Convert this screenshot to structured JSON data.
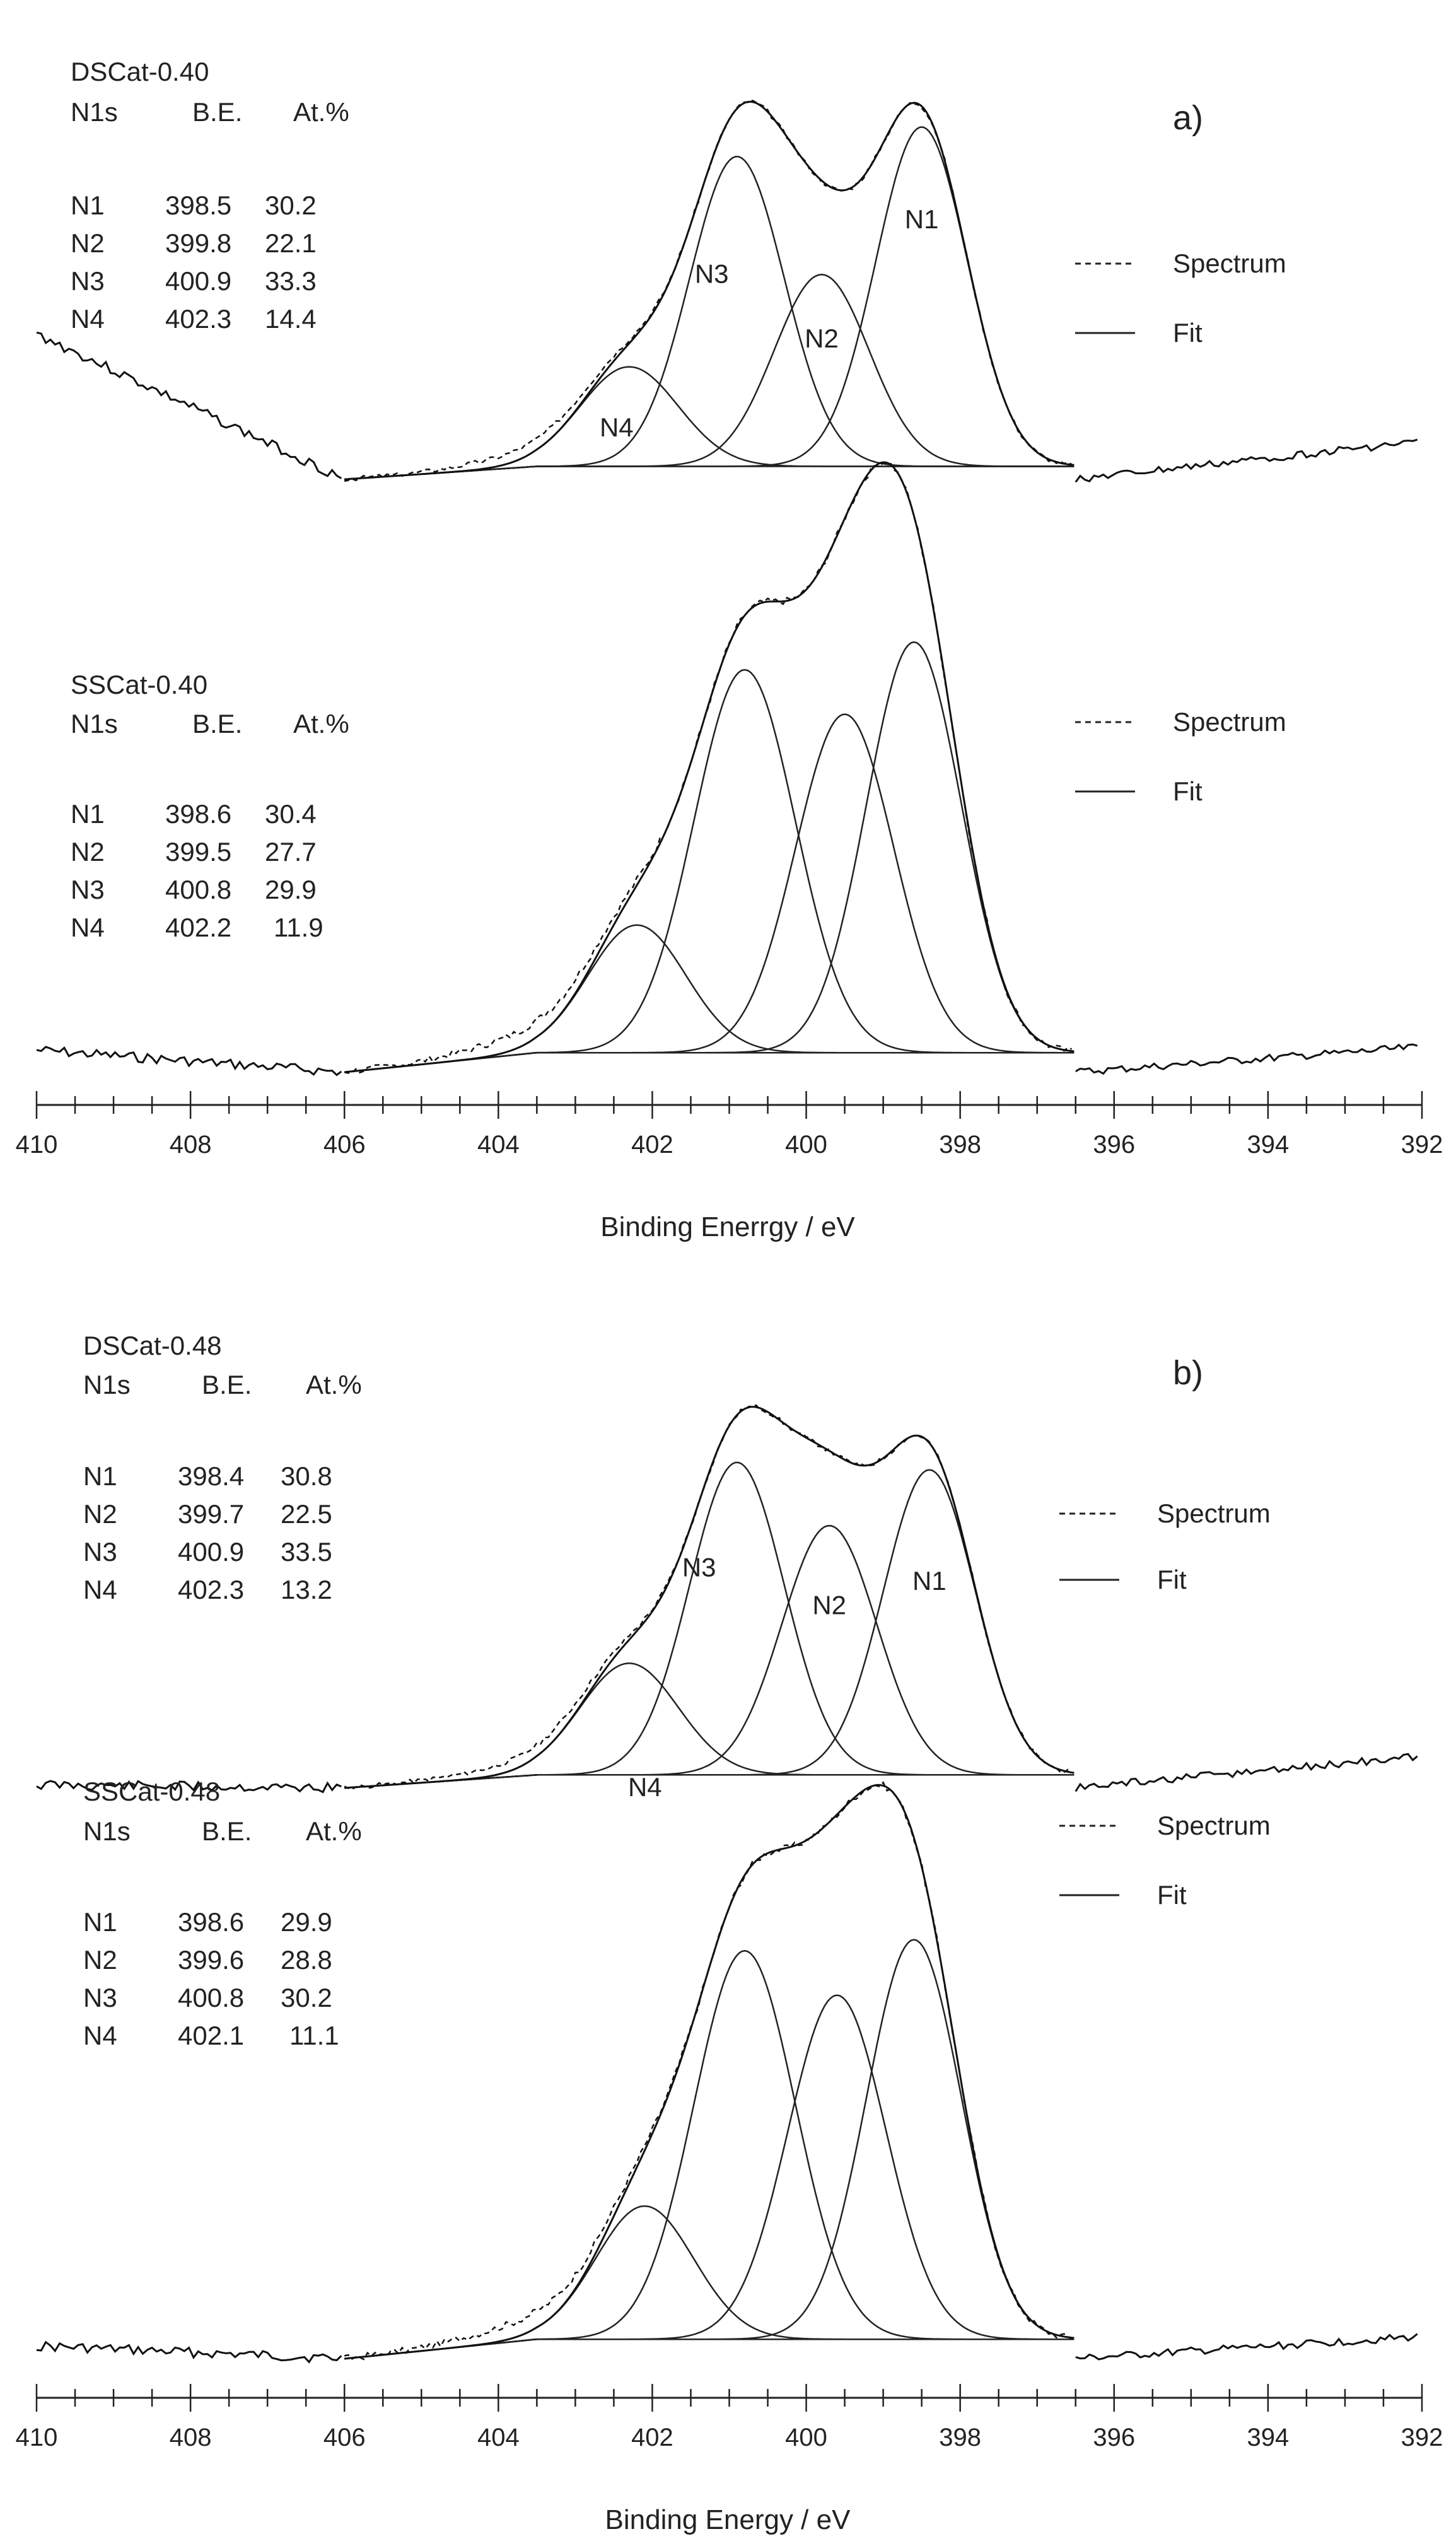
{
  "panels": [
    {
      "label": "a)",
      "axis": {
        "xlabel": "Binding Enerrgy / eV",
        "xlim": [
          410,
          392
        ],
        "ticks": [
          "410",
          "408",
          "406",
          "404",
          "402",
          "400",
          "398",
          "396",
          "394",
          "392"
        ],
        "minor_step": 0.5
      },
      "legend": {
        "spectrum": "Spectrum",
        "fit": "Fit"
      },
      "spectra": [
        {
          "sample": "DSCat-0.40",
          "header": {
            "c1": "N1s",
            "c2": "B.E.",
            "c3": "At.%"
          },
          "rows": [
            {
              "name": "N1",
              "be": "398.5",
              "at": "30.2"
            },
            {
              "name": "N2",
              "be": "399.8",
              "at": "22.1"
            },
            {
              "name": "N3",
              "be": "400.9",
              "at": "33.3"
            },
            {
              "name": "N4",
              "be": "402.3",
              "at": "14.4"
            }
          ]
        },
        {
          "sample": "SSCat-0.40",
          "header": {
            "c1": "N1s",
            "c2": "B.E.",
            "c3": "At.%"
          },
          "rows": [
            {
              "name": "N1",
              "be": "398.6",
              "at": "30.4"
            },
            {
              "name": "N2",
              "be": "399.5",
              "at": "27.7"
            },
            {
              "name": "N3",
              "be": "400.8",
              "at": "29.9"
            },
            {
              "name": "N4",
              "be": "402.2",
              "at": "11.9"
            }
          ]
        }
      ]
    },
    {
      "label": "b)",
      "axis": {
        "xlabel": "Binding Energy / eV",
        "xlim": [
          410,
          392
        ],
        "ticks": [
          "410",
          "408",
          "406",
          "404",
          "402",
          "400",
          "398",
          "396",
          "394",
          "392"
        ],
        "minor_step": 0.5
      },
      "legend": {
        "spectrum": "Spectrum",
        "fit": "Fit"
      },
      "spectra": [
        {
          "sample": "DSCat-0.48",
          "header": {
            "c1": "N1s",
            "c2": "B.E.",
            "c3": "At.%"
          },
          "rows": [
            {
              "name": "N1",
              "be": "398.4",
              "at": "30.8"
            },
            {
              "name": "N2",
              "be": "399.7",
              "at": "22.5"
            },
            {
              "name": "N3",
              "be": "400.9",
              "at": "33.5"
            },
            {
              "name": "N4",
              "be": "402.3",
              "at": "13.2"
            }
          ]
        },
        {
          "sample": "SSCat-0.48",
          "header": {
            "c1": "N1s",
            "c2": "B.E.",
            "c3": "At.%"
          },
          "rows": [
            {
              "name": "N1",
              "be": "398.6",
              "at": "29.9"
            },
            {
              "name": "N2",
              "be": "399.6",
              "at": "28.8"
            },
            {
              "name": "N3",
              "be": "400.8",
              "at": "30.2"
            },
            {
              "name": "N4",
              "be": "402.1",
              "at": "11.1"
            }
          ]
        }
      ]
    }
  ],
  "chart_data": [
    {
      "type": "line",
      "title": "a) DSCat-0.40 N1s XPS",
      "xlabel": "Binding Enerrgy / eV",
      "ylabel": "",
      "xlim": [
        410,
        392
      ],
      "fit_range": [
        406,
        396.5
      ],
      "peak_labels": [
        "N1",
        "N2",
        "N3",
        "N4"
      ],
      "series": [
        {
          "name": "N1",
          "center": 398.5,
          "height": 0.92,
          "fwhm": 1.4
        },
        {
          "name": "N2",
          "center": 399.8,
          "height": 0.52,
          "fwhm": 1.45
        },
        {
          "name": "N3",
          "center": 400.9,
          "height": 0.84,
          "fwhm": 1.45
        },
        {
          "name": "N4",
          "center": 402.3,
          "height": 0.27,
          "fwhm": 1.5
        }
      ]
    },
    {
      "type": "line",
      "title": "a) SSCat-0.40 N1s XPS",
      "xlabel": "Binding Enerrgy / eV",
      "ylabel": "",
      "xlim": [
        410,
        392
      ],
      "fit_range": [
        406,
        396.5
      ],
      "peak_labels": [],
      "series": [
        {
          "name": "N1",
          "center": 398.6,
          "height": 0.74,
          "fwhm": 1.45
        },
        {
          "name": "N2",
          "center": 399.5,
          "height": 0.61,
          "fwhm": 1.5
        },
        {
          "name": "N3",
          "center": 400.8,
          "height": 0.69,
          "fwhm": 1.55
        },
        {
          "name": "N4",
          "center": 402.2,
          "height": 0.23,
          "fwhm": 1.5
        }
      ]
    },
    {
      "type": "line",
      "title": "b) DSCat-0.48 N1s XPS",
      "xlabel": "Binding Energy / eV",
      "ylabel": "",
      "xlim": [
        410,
        392
      ],
      "fit_range": [
        406,
        396.5
      ],
      "peak_labels": [
        "N1",
        "N2",
        "N3",
        "N4"
      ],
      "series": [
        {
          "name": "N1",
          "center": 398.4,
          "height": 0.82,
          "fwhm": 1.4
        },
        {
          "name": "N2",
          "center": 399.7,
          "height": 0.67,
          "fwhm": 1.45
        },
        {
          "name": "N3",
          "center": 400.9,
          "height": 0.84,
          "fwhm": 1.45
        },
        {
          "name": "N4",
          "center": 402.3,
          "height": 0.3,
          "fwhm": 1.5
        }
      ]
    },
    {
      "type": "line",
      "title": "b) SSCat-0.48 N1s XPS",
      "xlabel": "Binding Energy / eV",
      "ylabel": "",
      "xlim": [
        410,
        392
      ],
      "fit_range": [
        406,
        396.5
      ],
      "peak_labels": [],
      "series": [
        {
          "name": "N1",
          "center": 398.6,
          "height": 0.72,
          "fwhm": 1.45
        },
        {
          "name": "N2",
          "center": 399.6,
          "height": 0.62,
          "fwhm": 1.5
        },
        {
          "name": "N3",
          "center": 400.8,
          "height": 0.7,
          "fwhm": 1.55
        },
        {
          "name": "N4",
          "center": 402.1,
          "height": 0.24,
          "fwhm": 1.5
        }
      ]
    }
  ]
}
